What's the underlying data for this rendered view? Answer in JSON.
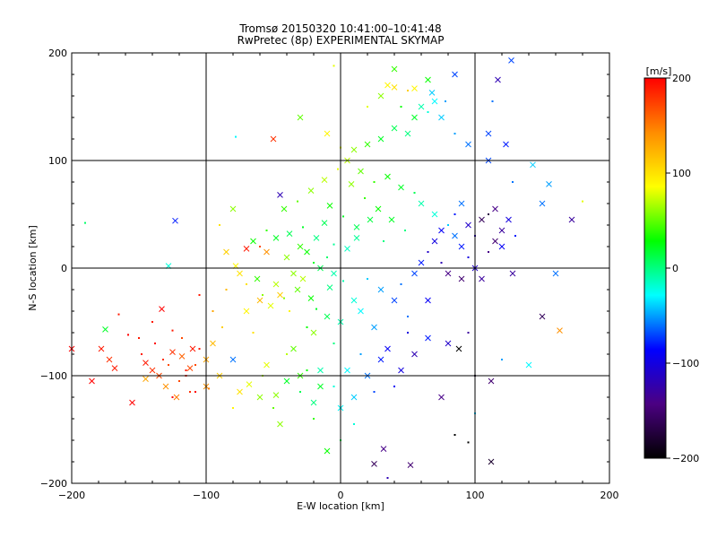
{
  "header": {
    "title": "Tromsø 20150320 10:41:00–10:41:48",
    "subtitle": "RwPretec (8p) EXPERIMENTAL SKYMAP"
  },
  "colorbar": {
    "unit": "[m/s]",
    "ticks": [
      "200",
      "100",
      "0",
      "−100",
      "−200"
    ],
    "range": [
      -200,
      200
    ],
    "colors": [
      "#000000",
      "#4b0082",
      "#0000ff",
      "#00ffff",
      "#00ff00",
      "#ffff00",
      "#ff8c00",
      "#ff0000"
    ]
  },
  "chart_data": {
    "type": "scatter",
    "title": "Tromsø 20150320 10:41:00–10:41:48",
    "subtitle": "RwPretec (8p) EXPERIMENTAL SKYMAP",
    "xlabel": "E-W location [km]",
    "ylabel": "N-S location [km]",
    "xlim": [
      -200,
      200
    ],
    "ylim": [
      -200,
      200
    ],
    "xticks": [
      "−200",
      "−100",
      "0",
      "100",
      "200"
    ],
    "yticks": [
      "200",
      "100",
      "0",
      "−100",
      "−200"
    ],
    "grid": true,
    "points": [
      [
        -190,
        42,
        5,
        0
      ],
      [
        -123,
        44,
        -80,
        1
      ],
      [
        -128,
        2,
        -20,
        1
      ],
      [
        -78,
        122,
        -30,
        0
      ],
      [
        -30,
        140,
        50,
        1
      ],
      [
        -5,
        188,
        80,
        0
      ],
      [
        -50,
        120,
        180,
        1
      ],
      [
        -45,
        68,
        -120,
        1
      ],
      [
        -70,
        18,
        190,
        1
      ],
      [
        -60,
        20,
        170,
        0
      ],
      [
        -55,
        15,
        140,
        1
      ],
      [
        -40,
        10,
        60,
        1
      ],
      [
        -30,
        20,
        40,
        1
      ],
      [
        -25,
        15,
        30,
        1
      ],
      [
        -20,
        5,
        20,
        0
      ],
      [
        -35,
        -5,
        60,
        1
      ],
      [
        -28,
        -10,
        70,
        1
      ],
      [
        -15,
        0,
        10,
        1
      ],
      [
        -10,
        10,
        5,
        0
      ],
      [
        -5,
        -5,
        -10,
        1
      ],
      [
        -45,
        -25,
        110,
        1
      ],
      [
        -38,
        -40,
        90,
        0
      ],
      [
        -60,
        -30,
        120,
        1
      ],
      [
        -20,
        -60,
        60,
        1
      ],
      [
        -55,
        -90,
        80,
        1
      ],
      [
        -40,
        -80,
        70,
        0
      ],
      [
        -30,
        -100,
        40,
        1
      ],
      [
        -15,
        -110,
        20,
        1
      ],
      [
        -25,
        -95,
        30,
        0
      ],
      [
        -60,
        -120,
        60,
        1
      ],
      [
        -50,
        -130,
        50,
        0
      ],
      [
        -45,
        -145,
        60,
        1
      ],
      [
        -20,
        -140,
        40,
        0
      ],
      [
        -10,
        -170,
        30,
        1
      ],
      [
        0,
        -160,
        10,
        0
      ],
      [
        -90,
        -100,
        110,
        1
      ],
      [
        -100,
        -110,
        140,
        1
      ],
      [
        -80,
        -85,
        -60,
        1
      ],
      [
        -65,
        -60,
        100,
        0
      ],
      [
        -70,
        -40,
        90,
        1
      ],
      [
        -85,
        -20,
        120,
        0
      ],
      [
        -75,
        -5,
        100,
        1
      ],
      [
        -95,
        -40,
        130,
        0
      ],
      [
        -105,
        -25,
        190,
        0
      ],
      [
        -200,
        -75,
        200,
        1
      ],
      [
        -185,
        -105,
        200,
        1
      ],
      [
        -178,
        -75,
        190,
        1
      ],
      [
        -172,
        -85,
        180,
        1
      ],
      [
        -168,
        -93,
        190,
        1
      ],
      [
        -175,
        -57,
        20,
        1
      ],
      [
        -155,
        -125,
        200,
        1
      ],
      [
        -150,
        -65,
        190,
        0
      ],
      [
        -148,
        -80,
        190,
        0
      ],
      [
        -145,
        -88,
        190,
        1
      ],
      [
        -140,
        -95,
        180,
        1
      ],
      [
        -138,
        -70,
        200,
        0
      ],
      [
        -135,
        -100,
        170,
        1
      ],
      [
        -132,
        -85,
        180,
        0
      ],
      [
        -130,
        -110,
        140,
        1
      ],
      [
        -128,
        -90,
        170,
        0
      ],
      [
        -125,
        -78,
        180,
        1
      ],
      [
        -122,
        -120,
        150,
        1
      ],
      [
        -120,
        -105,
        170,
        0
      ],
      [
        -118,
        -82,
        160,
        1
      ],
      [
        -115,
        -95,
        190,
        0
      ],
      [
        -112,
        -115,
        180,
        0
      ],
      [
        -108,
        -90,
        170,
        0
      ],
      [
        -105,
        -75,
        190,
        0
      ],
      [
        -110,
        -75,
        190,
        1
      ],
      [
        -145,
        -103,
        130,
        1
      ],
      [
        -158,
        -62,
        200,
        0
      ],
      [
        -165,
        -43,
        190,
        0
      ],
      [
        -133,
        -38,
        200,
        1
      ],
      [
        -140,
        -50,
        190,
        0
      ],
      [
        -125,
        -58,
        190,
        0
      ],
      [
        -118,
        -65,
        170,
        0
      ],
      [
        -125,
        -120,
        200,
        0
      ],
      [
        -115,
        -100,
        190,
        0
      ],
      [
        -108,
        -115,
        200,
        0
      ],
      [
        10,
        110,
        60,
        1
      ],
      [
        20,
        115,
        40,
        1
      ],
      [
        30,
        120,
        20,
        1
      ],
      [
        40,
        130,
        10,
        1
      ],
      [
        50,
        125,
        0,
        1
      ],
      [
        55,
        140,
        20,
        1
      ],
      [
        45,
        150,
        30,
        0
      ],
      [
        30,
        160,
        60,
        1
      ],
      [
        20,
        150,
        80,
        0
      ],
      [
        35,
        170,
        90,
        1
      ],
      [
        60,
        150,
        -10,
        1
      ],
      [
        65,
        145,
        -20,
        0
      ],
      [
        70,
        155,
        -30,
        1
      ],
      [
        75,
        140,
        -40,
        1
      ],
      [
        85,
        125,
        -50,
        0
      ],
      [
        95,
        115,
        -60,
        1
      ],
      [
        110,
        100,
        -70,
        1
      ],
      [
        40,
        168,
        100,
        1
      ],
      [
        50,
        165,
        110,
        0
      ],
      [
        55,
        167,
        90,
        1
      ],
      [
        68,
        163,
        -40,
        1
      ],
      [
        78,
        155,
        -50,
        0
      ],
      [
        65,
        175,
        30,
        1
      ],
      [
        40,
        185,
        40,
        1
      ],
      [
        85,
        180,
        -70,
        1
      ],
      [
        -10,
        125,
        90,
        1
      ],
      [
        0,
        112,
        80,
        0
      ],
      [
        5,
        100,
        70,
        1
      ],
      [
        15,
        90,
        50,
        1
      ],
      [
        25,
        80,
        40,
        0
      ],
      [
        35,
        85,
        30,
        1
      ],
      [
        45,
        75,
        20,
        1
      ],
      [
        55,
        70,
        10,
        0
      ],
      [
        60,
        60,
        -10,
        1
      ],
      [
        70,
        50,
        -20,
        1
      ],
      [
        80,
        40,
        -40,
        0
      ],
      [
        85,
        30,
        -60,
        1
      ],
      [
        90,
        20,
        -80,
        1
      ],
      [
        95,
        10,
        -100,
        0
      ],
      [
        100,
        0,
        -110,
        1
      ],
      [
        105,
        -10,
        -130,
        1
      ],
      [
        110,
        15,
        -140,
        0
      ],
      [
        115,
        25,
        -150,
        1
      ],
      [
        120,
        35,
        -130,
        1
      ],
      [
        100,
        30,
        -120,
        0
      ],
      [
        95,
        40,
        -110,
        1
      ],
      [
        105,
        45,
        -160,
        1
      ],
      [
        110,
        50,
        -170,
        0
      ],
      [
        115,
        55,
        -140,
        1
      ],
      [
        125,
        45,
        -100,
        1
      ],
      [
        130,
        30,
        -80,
        0
      ],
      [
        120,
        20,
        -90,
        1
      ],
      [
        90,
        60,
        -60,
        1
      ],
      [
        85,
        50,
        -80,
        0
      ],
      [
        75,
        35,
        -90,
        1
      ],
      [
        70,
        25,
        -100,
        1
      ],
      [
        65,
        15,
        -110,
        0
      ],
      [
        60,
        5,
        -80,
        1
      ],
      [
        75,
        5,
        -120,
        0
      ],
      [
        80,
        -5,
        -140,
        1
      ],
      [
        90,
        -10,
        -150,
        1
      ],
      [
        117,
        175,
        -120,
        1
      ],
      [
        127,
        193,
        -70,
        1
      ],
      [
        113,
        155,
        -60,
        0
      ],
      [
        110,
        125,
        -70,
        1
      ],
      [
        123,
        115,
        -80,
        1
      ],
      [
        143,
        96,
        -40,
        1
      ],
      [
        128,
        80,
        -60,
        0
      ],
      [
        155,
        78,
        -50,
        1
      ],
      [
        150,
        60,
        -60,
        1
      ],
      [
        172,
        45,
        -130,
        1
      ],
      [
        160,
        -5,
        -60,
        1
      ],
      [
        128,
        -5,
        -130,
        1
      ],
      [
        150,
        -45,
        -160,
        1
      ],
      [
        163,
        -58,
        140,
        1
      ],
      [
        180,
        62,
        80,
        0
      ],
      [
        140,
        -90,
        -30,
        1
      ],
      [
        120,
        -85,
        -50,
        0
      ],
      [
        88,
        -75,
        -200,
        1
      ],
      [
        100,
        -100,
        -170,
        0
      ],
      [
        112,
        -105,
        -150,
        1
      ],
      [
        95,
        -60,
        -130,
        0
      ],
      [
        80,
        -70,
        -110,
        1
      ],
      [
        75,
        -120,
        -140,
        1
      ],
      [
        100,
        -135,
        -40,
        0
      ],
      [
        85,
        -155,
        -200,
        0
      ],
      [
        95,
        -162,
        -200,
        0
      ],
      [
        112,
        -180,
        -180,
        1
      ],
      [
        52,
        -183,
        -150,
        1
      ],
      [
        32,
        -168,
        -140,
        1
      ],
      [
        25,
        -182,
        -160,
        1
      ],
      [
        35,
        -195,
        -120,
        0
      ],
      [
        45,
        -95,
        -100,
        1
      ],
      [
        40,
        -110,
        -90,
        0
      ],
      [
        30,
        -85,
        -80,
        1
      ],
      [
        20,
        -100,
        -60,
        1
      ],
      [
        15,
        -80,
        -50,
        0
      ],
      [
        10,
        -120,
        -40,
        1
      ],
      [
        5,
        -95,
        -30,
        1
      ],
      [
        25,
        -115,
        -70,
        0
      ],
      [
        35,
        -75,
        -90,
        1
      ],
      [
        50,
        -60,
        -100,
        0
      ],
      [
        55,
        -80,
        -120,
        1
      ],
      [
        65,
        -65,
        -80,
        1
      ],
      [
        50,
        -45,
        -60,
        0
      ],
      [
        40,
        -30,
        -70,
        1
      ],
      [
        30,
        -20,
        -50,
        1
      ],
      [
        20,
        -10,
        -40,
        0
      ],
      [
        10,
        -30,
        -20,
        1
      ],
      [
        0,
        -50,
        -10,
        1
      ],
      [
        -5,
        -70,
        0,
        0
      ],
      [
        15,
        -40,
        -30,
        1
      ],
      [
        25,
        -55,
        -50,
        1
      ],
      [
        45,
        -15,
        -60,
        0
      ],
      [
        55,
        -5,
        -70,
        1
      ],
      [
        65,
        -30,
        -90,
        1
      ],
      [
        -40,
        -105,
        20,
        1
      ],
      [
        -30,
        -115,
        10,
        0
      ],
      [
        -20,
        -125,
        0,
        1
      ],
      [
        -15,
        -95,
        -10,
        1
      ],
      [
        -5,
        -110,
        -20,
        0
      ],
      [
        0,
        -130,
        -30,
        1
      ],
      [
        10,
        -145,
        -20,
        0
      ],
      [
        -35,
        -75,
        50,
        1
      ],
      [
        -25,
        -55,
        30,
        0
      ],
      [
        -10,
        -45,
        10,
        1
      ],
      [
        -62,
        -10,
        40,
        1
      ],
      [
        -58,
        -25,
        60,
        0
      ],
      [
        -52,
        -35,
        80,
        1
      ],
      [
        -48,
        -15,
        70,
        1
      ],
      [
        -42,
        -28,
        60,
        0
      ],
      [
        -32,
        -20,
        50,
        1
      ],
      [
        -22,
        -28,
        30,
        1
      ],
      [
        -18,
        -38,
        20,
        0
      ],
      [
        -8,
        -18,
        0,
        1
      ],
      [
        2,
        -12,
        -10,
        0
      ],
      [
        -65,
        25,
        30,
        1
      ],
      [
        -55,
        35,
        40,
        0
      ],
      [
        -48,
        28,
        20,
        1
      ],
      [
        -38,
        32,
        10,
        1
      ],
      [
        -28,
        38,
        20,
        0
      ],
      [
        -18,
        28,
        0,
        1
      ],
      [
        -12,
        42,
        10,
        1
      ],
      [
        -5,
        22,
        -5,
        0
      ],
      [
        5,
        18,
        -15,
        1
      ],
      [
        12,
        28,
        -5,
        1
      ],
      [
        -42,
        55,
        40,
        1
      ],
      [
        -32,
        62,
        50,
        0
      ],
      [
        -22,
        72,
        60,
        1
      ],
      [
        -12,
        82,
        70,
        1
      ],
      [
        -2,
        92,
        80,
        0
      ],
      [
        8,
        78,
        60,
        1
      ],
      [
        18,
        65,
        40,
        0
      ],
      [
        28,
        55,
        30,
        1
      ],
      [
        38,
        45,
        20,
        1
      ],
      [
        48,
        35,
        0,
        0
      ],
      [
        -8,
        58,
        30,
        1
      ],
      [
        2,
        48,
        20,
        0
      ],
      [
        12,
        38,
        10,
        1
      ],
      [
        22,
        45,
        15,
        1
      ],
      [
        32,
        25,
        0,
        0
      ],
      [
        -80,
        55,
        60,
        1
      ],
      [
        -90,
        40,
        100,
        0
      ],
      [
        -85,
        15,
        110,
        1
      ],
      [
        -78,
        2,
        90,
        1
      ],
      [
        -70,
        -15,
        100,
        0
      ],
      [
        -95,
        -70,
        120,
        1
      ],
      [
        -88,
        -55,
        110,
        0
      ],
      [
        -100,
        -85,
        130,
        1
      ],
      [
        -112,
        -93,
        170,
        1
      ],
      [
        -98,
        -112,
        150,
        0
      ],
      [
        -75,
        -115,
        100,
        1
      ],
      [
        -80,
        -130,
        90,
        0
      ],
      [
        -68,
        -108,
        80,
        1
      ],
      [
        -58,
        -100,
        70,
        0
      ],
      [
        -48,
        -118,
        60,
        1
      ]
    ]
  }
}
